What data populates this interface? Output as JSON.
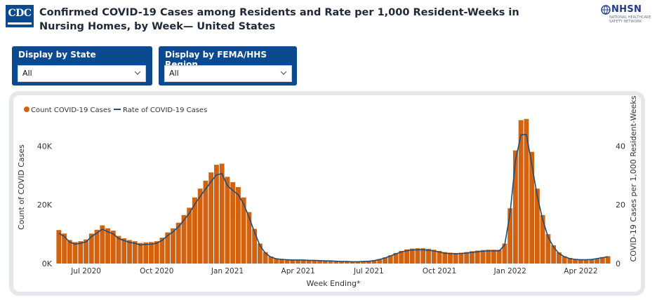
{
  "header": {
    "logo_text": "CDC",
    "title": "Confirmed COVID-19 Cases among Residents and Rate per 1,000 Resident-Weeks in Nursing Homes, by Week— United States",
    "nhsn_logo": "NHSN",
    "nhsn_subtitle": "NATIONAL HEALTHCARE SAFETY NETWORK"
  },
  "filters": {
    "state": {
      "label": "Display by State",
      "value": "All"
    },
    "region": {
      "label": "Display by FEMA/HHS Region",
      "value": "All"
    }
  },
  "colors": {
    "bar": "#d2620e",
    "line": "#1f4e79",
    "filter_bg": "#0b4a8f"
  },
  "chart_data": {
    "type": "bar",
    "title": "",
    "xlabel": "Week Ending*",
    "ylabel": "Count of COVID Cases",
    "y2label": "COVID-19 Cases per 1,000 Resident-Weeks",
    "legend": [
      "Count COVID-19 Cases",
      "Rate of COVID-19 Cases"
    ],
    "legend_position": "top-left",
    "ylim": [
      0,
      52000
    ],
    "y2lim": [
      0,
      52
    ],
    "yticks": [
      "0K",
      "20K",
      "40K"
    ],
    "y2ticks": [
      "0",
      "20",
      "40"
    ],
    "x_ticks": [
      "Jul 2020",
      "Oct 2020",
      "Jan 2021",
      "Apr 2021",
      "Jul 2021",
      "Oct 2021",
      "Jan 2022",
      "Apr 2022"
    ],
    "x_tick_week_index": [
      5,
      18,
      31,
      44,
      57,
      70,
      83,
      96
    ],
    "series": [
      {
        "name": "Count COVID-19 Cases",
        "type": "bar",
        "values": [
          11400,
          10200,
          8000,
          7300,
          7600,
          8200,
          10200,
          11500,
          13000,
          12000,
          11200,
          9400,
          8600,
          8000,
          7600,
          7000,
          7200,
          7300,
          7600,
          8800,
          10600,
          12000,
          13900,
          16500,
          19000,
          22500,
          25500,
          28200,
          31000,
          33600,
          34000,
          29500,
          27700,
          26000,
          22500,
          17500,
          11800,
          6800,
          3900,
          2400,
          1800,
          1600,
          1400,
          1300,
          1300,
          1300,
          1200,
          1200,
          1100,
          1000,
          1000,
          900,
          800,
          800,
          700,
          700,
          800,
          900,
          1100,
          1500,
          2100,
          2800,
          3600,
          4300,
          4800,
          5100,
          5200,
          5200,
          5000,
          4700,
          4300,
          3900,
          3700,
          3600,
          3700,
          3900,
          4200,
          4400,
          4600,
          4700,
          4700,
          4700,
          6800,
          18800,
          38500,
          48800,
          49200,
          38000,
          25500,
          16500,
          10000,
          6200,
          3800,
          2500,
          1900,
          1600,
          1400,
          1400,
          1500,
          1800,
          2200,
          2500
        ]
      },
      {
        "name": "Rate of COVID-19 Cases",
        "type": "line",
        "axis": "right",
        "values": [
          10.3,
          9.2,
          7.3,
          6.6,
          6.9,
          7.4,
          9.2,
          10.4,
          11.7,
          10.8,
          10.1,
          8.5,
          7.8,
          7.2,
          6.9,
          6.3,
          6.5,
          6.6,
          6.9,
          7.9,
          9.5,
          10.8,
          12.5,
          14.8,
          17.1,
          20.2,
          22.9,
          25.4,
          27.9,
          30.2,
          30.6,
          26.5,
          24.9,
          23.4,
          20.2,
          15.7,
          10.6,
          6.1,
          3.5,
          2.2,
          1.6,
          1.4,
          1.3,
          1.2,
          1.2,
          1.2,
          1.1,
          1.1,
          1.0,
          0.9,
          0.9,
          0.8,
          0.7,
          0.7,
          0.6,
          0.6,
          0.7,
          0.8,
          1.0,
          1.4,
          1.9,
          2.6,
          3.3,
          3.9,
          4.4,
          4.6,
          4.7,
          4.7,
          4.5,
          4.3,
          3.9,
          3.5,
          3.4,
          3.3,
          3.4,
          3.6,
          3.8,
          4.0,
          4.2,
          4.3,
          4.3,
          4.3,
          6.3,
          17.2,
          35.2,
          43.8,
          43.9,
          33.7,
          22.9,
          14.9,
          9.0,
          5.6,
          3.4,
          2.3,
          1.7,
          1.4,
          1.3,
          1.3,
          1.4,
          1.7,
          2.0,
          2.3
        ]
      }
    ]
  }
}
